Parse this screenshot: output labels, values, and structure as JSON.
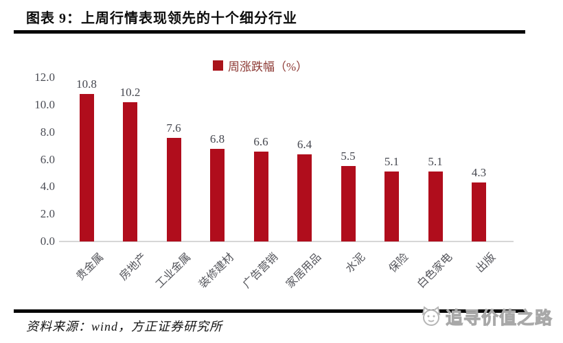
{
  "header": {
    "title": "图表 9：上周行情表现领先的十个细分行业"
  },
  "chart_data": {
    "type": "bar",
    "title": "",
    "legend": "周涨跌幅（%）",
    "legend_position": "top-center",
    "categories": [
      "贵金属",
      "房地产",
      "工业金属",
      "装修建材",
      "广告营销",
      "家居用品",
      "水泥",
      "保险",
      "白色家电",
      "出版"
    ],
    "values": [
      10.8,
      10.2,
      7.6,
      6.8,
      6.6,
      6.4,
      5.5,
      5.1,
      5.1,
      4.3
    ],
    "value_labels": [
      "10.8",
      "10.2",
      "7.6",
      "6.8",
      "6.6",
      "6.4",
      "5.5",
      "5.1",
      "5.1",
      "4.3"
    ],
    "xlabel": "",
    "ylabel": "",
    "ylim": [
      0,
      12
    ],
    "ytick_labels": [
      "0.0",
      "2.0",
      "4.0",
      "6.0",
      "8.0",
      "10.0",
      "12.0"
    ],
    "grid": false,
    "bar_color": "#b00d1c"
  },
  "footer": {
    "source": "资料来源：wind，方正证券研究所"
  },
  "watermark": {
    "text": "追寻价值之路",
    "logo": "cat-face-icon"
  },
  "colors": {
    "bar": "#b00d1c",
    "legend_text": "#8c3833",
    "axis_text": "#4a4c54",
    "baseline": "#d6d6d6",
    "rule": "#000000",
    "watermark": "#cfcfcf"
  }
}
